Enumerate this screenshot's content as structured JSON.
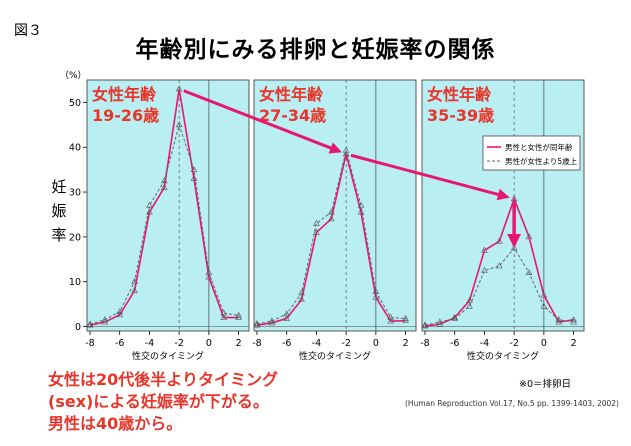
{
  "figure_label": "図３",
  "title": "年齢別にみる排卵と妊娠率の関係",
  "y_unit": "（%）",
  "y_axis_label": [
    "妊",
    "娠",
    "率"
  ],
  "x_axis_label": "性交のタイミング",
  "ovulation_note": "※0＝排卵日",
  "citation": "(Human Reproduction Vol.17, No.5 pp. 1399-1403, 2002)",
  "conclusion": [
    "女性は20代後半よりタイミング",
    "(sex)による妊娠率が下がる。",
    "男性は40歳から。"
  ],
  "colors": {
    "panel_bg": "#b9eef3",
    "solid_line": "#e6176e",
    "dashed_line": "#666666",
    "arrow": "#e6176e",
    "panel_label": "#e8352a"
  },
  "chart_data": {
    "type": "line",
    "x": [
      -8,
      -7,
      -6,
      -5,
      -4,
      -3,
      -2,
      -1,
      0,
      1,
      2
    ],
    "xticks": [
      -8,
      -6,
      -4,
      -2,
      0,
      2
    ],
    "yticks": [
      0,
      10,
      20,
      30,
      40,
      50
    ],
    "ylim": [
      -1,
      55
    ],
    "xlim": [
      -8.2,
      2.7
    ],
    "grid": "vertical-dashed-at-minus2",
    "legend": {
      "placement": "top-right-of-third-panel",
      "entries": [
        "男性と女性が同年齢",
        "男性が女性より5歳上"
      ]
    },
    "panels": [
      {
        "label": [
          "女性年齢",
          "19-26歳"
        ],
        "series": [
          {
            "name": "男性と女性が同年齢",
            "style": "solid",
            "values": [
              0.3,
              1.0,
              2.6,
              8.0,
              25.5,
              31.0,
              53.0,
              33.0,
              11.0,
              2.0,
              2.0
            ]
          },
          {
            "name": "男性が女性より5歳上",
            "style": "dashed",
            "values": [
              0.5,
              1.5,
              3.3,
              10.0,
              27.0,
              32.5,
              45.0,
              35.0,
              12.0,
              3.0,
              2.5
            ]
          }
        ]
      },
      {
        "label": [
          "女性年齢",
          "27-34歳"
        ],
        "series": [
          {
            "name": "男性と女性が同年齢",
            "style": "solid",
            "values": [
              0.3,
              0.8,
              1.8,
              6.0,
              21.0,
              24.0,
              38.5,
              25.5,
              6.5,
              1.2,
              1.3
            ]
          },
          {
            "name": "男性が女性より5歳上",
            "style": "dashed",
            "values": [
              0.6,
              1.2,
              2.8,
              7.5,
              23.0,
              25.5,
              39.3,
              27.0,
              7.8,
              2.0,
              1.8
            ]
          }
        ]
      },
      {
        "label": [
          "女性年齢",
          "35-39歳"
        ],
        "series": [
          {
            "name": "男性と女性が同年齢",
            "style": "solid",
            "values": [
              0.1,
              0.5,
              2.0,
              5.8,
              17.0,
              19.0,
              28.5,
              20.0,
              7.0,
              1.0,
              1.5
            ]
          },
          {
            "name": "男性が女性より5歳上",
            "style": "dashed",
            "values": [
              0.3,
              1.0,
              1.8,
              4.5,
              12.5,
              13.5,
              17.5,
              12.0,
              4.5,
              1.5,
              1.0
            ]
          }
        ]
      }
    ],
    "arrows": [
      {
        "from": {
          "panel": 0,
          "x": -2,
          "y": 53
        },
        "to": {
          "panel": 1,
          "x": -2,
          "y": 38.5
        }
      },
      {
        "from": {
          "panel": 1,
          "x": -2,
          "y": 38.5
        },
        "to": {
          "panel": 2,
          "x": -2,
          "y": 28.5
        }
      },
      {
        "from": {
          "panel": 2,
          "x": -2,
          "y": 28.5
        },
        "to": {
          "panel": 2,
          "x": -2,
          "y": 17.5
        }
      }
    ]
  }
}
